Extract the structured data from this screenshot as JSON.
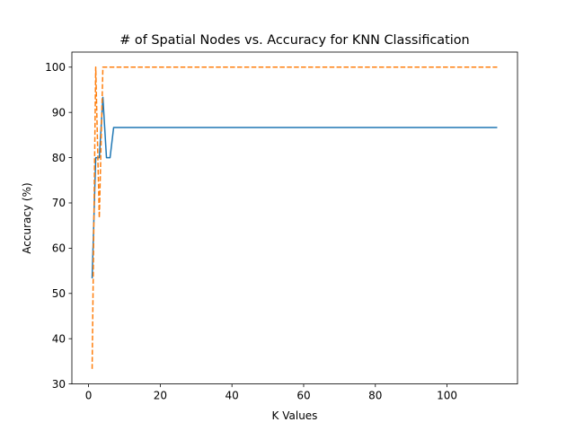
{
  "chart_data": {
    "type": "line",
    "title": "# of Spatial Nodes vs. Accuracy for KNN Classification",
    "xlabel": "K Values",
    "ylabel": "Accuracy (%)",
    "xlim": [
      -4.65,
      119.65
    ],
    "ylim": [
      30,
      103.33
    ],
    "xticks": [
      0,
      20,
      40,
      60,
      80,
      100
    ],
    "yticks": [
      30,
      40,
      50,
      60,
      70,
      80,
      90,
      100
    ],
    "grid": false,
    "legend": false,
    "series": [
      {
        "color": "#1f77b4",
        "dash": "solid",
        "points": [
          [
            1,
            53.33
          ],
          [
            2,
            80.0
          ],
          [
            3,
            80.0
          ],
          [
            4,
            93.33
          ],
          [
            5,
            80.0
          ],
          [
            6,
            80.0
          ],
          [
            7,
            86.67
          ],
          [
            114,
            86.67
          ]
        ]
      },
      {
        "color": "#ff7f0e",
        "dash": "dashed",
        "points": [
          [
            1,
            33.33
          ],
          [
            2,
            100.0
          ],
          [
            3,
            66.67
          ],
          [
            4,
            100.0
          ],
          [
            114,
            100.0
          ]
        ]
      }
    ]
  }
}
